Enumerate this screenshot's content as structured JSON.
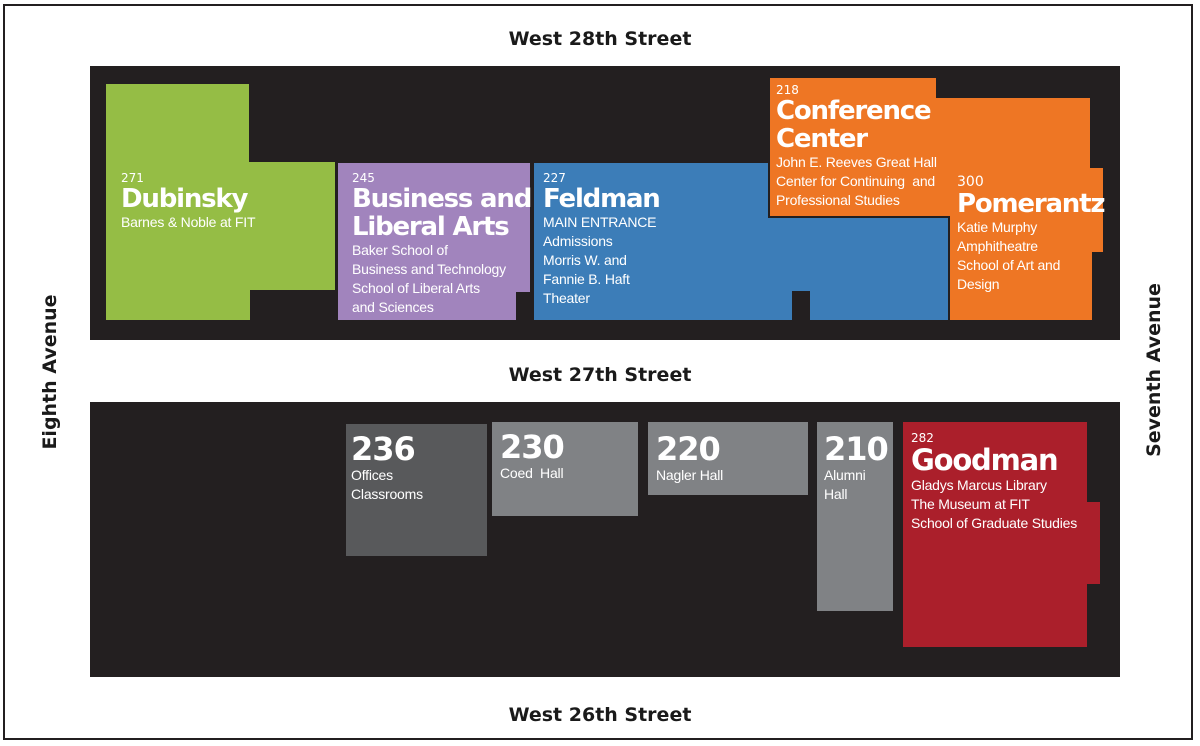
{
  "streets": {
    "north": "West 28th Street",
    "middle": "West 27th Street",
    "south": "West 26th Street",
    "west": "Eighth Avenue",
    "east": "Seventh Avenue"
  },
  "colors": {
    "block": "#231f20",
    "dubinsky": "#95bd45",
    "business": "#a184bd",
    "feldman": "#3c7db8",
    "conference": "#ee7624",
    "pomerantz": "#ee7624",
    "b236": "#58595b",
    "b230": "#808285",
    "b220": "#808285",
    "b210": "#808285",
    "goodman": "#ab1f2b"
  },
  "buildings": {
    "dubinsky": {
      "number": "271",
      "name": "Dubinsky",
      "lines": [
        "Barnes & Noble at FIT"
      ]
    },
    "business": {
      "number": "245",
      "name_lines": [
        "Business and",
        "Liberal Arts"
      ],
      "lines": [
        "Baker School of",
        "Business and Technology",
        "School of Liberal Arts",
        "and Sciences"
      ]
    },
    "feldman": {
      "number": "227",
      "name": "Feldman",
      "lines": [
        "MAIN ENTRANCE",
        "Admissions",
        "Morris W. and",
        "Fannie B. Haft",
        "Theater"
      ]
    },
    "conference": {
      "number": "218",
      "name_lines": [
        "Conference",
        "Center"
      ],
      "lines": [
        "John E. Reeves Great Hall",
        "Center for Continuing  and",
        "Professional Studies"
      ]
    },
    "pomerantz": {
      "number": "300",
      "name": "Pomerantz",
      "lines": [
        "Katie Murphy",
        "Amphitheatre",
        "School of Art and",
        "Design"
      ]
    },
    "b236": {
      "number": "236",
      "lines": [
        "Offices",
        "Classrooms"
      ]
    },
    "b230": {
      "number": "230",
      "lines": [
        "Coed  Hall"
      ]
    },
    "b220": {
      "number": "220",
      "lines": [
        "Nagler Hall"
      ]
    },
    "b210": {
      "number": "210",
      "lines": [
        "Alumni",
        "Hall"
      ]
    },
    "goodman": {
      "number": "282",
      "name": "Goodman",
      "lines": [
        "Gladys Marcus Library",
        "The Museum at FIT",
        "School of Graduate Studies"
      ]
    }
  }
}
